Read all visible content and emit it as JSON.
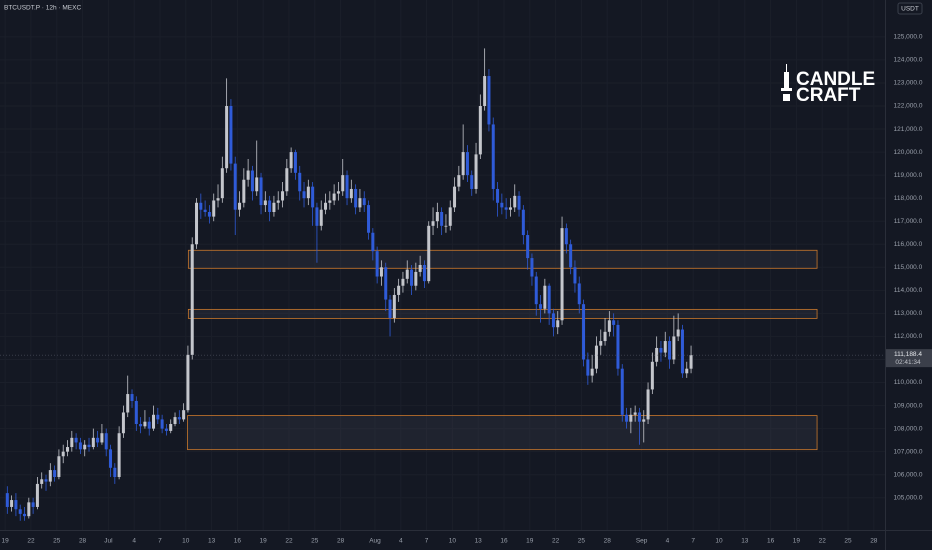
{
  "header": {
    "symbol_line": "BTCUSDT.P · 12h · MEXC",
    "currency": "USDT"
  },
  "logo": {
    "line1": "CANDLE",
    "line2": "CRAFT"
  },
  "chart_data": {
    "type": "candlestick",
    "up_color": "#c4c6cc",
    "down_color": "#2f5bd8",
    "zone_color": "#c9782c",
    "xlim": [
      -0.6,
      102.3
    ],
    "ylim": [
      103600,
      126600
    ],
    "xticks": [
      {
        "value": 0,
        "label": "19"
      },
      {
        "value": 3,
        "label": "22"
      },
      {
        "value": 6,
        "label": "25"
      },
      {
        "value": 9,
        "label": "28"
      },
      {
        "value": 12,
        "label": "Jul"
      },
      {
        "value": 15,
        "label": "4"
      },
      {
        "value": 18,
        "label": "7"
      },
      {
        "value": 21,
        "label": "10"
      },
      {
        "value": 24,
        "label": "13"
      },
      {
        "value": 27,
        "label": "16"
      },
      {
        "value": 30,
        "label": "19"
      },
      {
        "value": 33,
        "label": "22"
      },
      {
        "value": 36,
        "label": "25"
      },
      {
        "value": 39,
        "label": "28"
      },
      {
        "value": 43,
        "label": "Aug"
      },
      {
        "value": 46,
        "label": "4"
      },
      {
        "value": 49,
        "label": "7"
      },
      {
        "value": 52,
        "label": "10"
      },
      {
        "value": 55,
        "label": "13"
      },
      {
        "value": 58,
        "label": "16"
      },
      {
        "value": 61,
        "label": "19"
      },
      {
        "value": 64,
        "label": "22"
      },
      {
        "value": 67,
        "label": "25"
      },
      {
        "value": 70,
        "label": "28"
      },
      {
        "value": 74,
        "label": "Sep"
      },
      {
        "value": 77,
        "label": "4"
      },
      {
        "value": 80,
        "label": "7"
      },
      {
        "value": 83,
        "label": "10"
      },
      {
        "value": 86,
        "label": "13"
      },
      {
        "value": 89,
        "label": "16"
      },
      {
        "value": 92,
        "label": "19"
      },
      {
        "value": 95,
        "label": "22"
      },
      {
        "value": 98,
        "label": "25"
      },
      {
        "value": 101,
        "label": "28"
      }
    ],
    "yticks": [
      {
        "value": 105000,
        "label": "105,000.0"
      },
      {
        "value": 106000,
        "label": "106,000.0"
      },
      {
        "value": 107000,
        "label": "107,000.0"
      },
      {
        "value": 108000,
        "label": "108,000.0"
      },
      {
        "value": 109000,
        "label": "109,000.0"
      },
      {
        "value": 110000,
        "label": "110,000.0"
      },
      {
        "value": 111000,
        "label": "111,000.0"
      },
      {
        "value": 112000,
        "label": "112,000.0"
      },
      {
        "value": 113000,
        "label": "113,000.0"
      },
      {
        "value": 114000,
        "label": "114,000.0"
      },
      {
        "value": 115000,
        "label": "115,000.0"
      },
      {
        "value": 116000,
        "label": "116,000.0"
      },
      {
        "value": 117000,
        "label": "117,000.0"
      },
      {
        "value": 118000,
        "label": "118,000.0"
      },
      {
        "value": 119000,
        "label": "119,000.0"
      },
      {
        "value": 120000,
        "label": "120,000.0"
      },
      {
        "value": 121000,
        "label": "121,000.0"
      },
      {
        "value": 122000,
        "label": "122,000.0"
      },
      {
        "value": 123000,
        "label": "123,000.0"
      },
      {
        "value": 124000,
        "label": "124,000.0"
      },
      {
        "value": 125000,
        "label": "125,000.0"
      }
    ],
    "zones": [
      {
        "x": [
          21.3,
          94.4
        ],
        "y": [
          114957,
          115739
        ]
      },
      {
        "x": [
          21.3,
          94.4
        ],
        "y": [
          112783,
          113174
        ]
      },
      {
        "x": [
          21.2,
          94.4
        ],
        "y": [
          107087,
          108565
        ]
      }
    ],
    "last_price": {
      "value": 111188.4,
      "label": "111,188.4"
    },
    "countdown": "02:41:34",
    "x": [
      0,
      0.5,
      1,
      1.5,
      2,
      2.5,
      3,
      3.5,
      4,
      4.5,
      5,
      5.5,
      6,
      6.5,
      7,
      7.5,
      8,
      8.5,
      9,
      9.5,
      10,
      10.5,
      11,
      11.5,
      12,
      12.5,
      13,
      13.5,
      14,
      14.5,
      15,
      15.5,
      16,
      16.5,
      17,
      17.5,
      18,
      18.5,
      19,
      19.5,
      20,
      20.5,
      21,
      21.5,
      22,
      22.5,
      23,
      23.5,
      24,
      24.5,
      25,
      25.5,
      26,
      26.5,
      27,
      27.5,
      28,
      28.5,
      29,
      29.5,
      30,
      30.5,
      31,
      31.5,
      32,
      32.5,
      33,
      33.5,
      34,
      34.5,
      35,
      35.5,
      36,
      36.5,
      37,
      37.5,
      38,
      38.5,
      39,
      39.5,
      40,
      40.5,
      41,
      41.5,
      42,
      42.5,
      43,
      43.5,
      44,
      44.5,
      45,
      45.5,
      46,
      46.5,
      47,
      47.5,
      48,
      48.5,
      49,
      49.5,
      50,
      50.5,
      51,
      51.5,
      52,
      52.5,
      53,
      53.5,
      54,
      54.5,
      55,
      55.5,
      56,
      56.5,
      57,
      57.5,
      58,
      58.5,
      59,
      59.5,
      60,
      60.5,
      61,
      61.5,
      62,
      62.5,
      63,
      63.5,
      64,
      64.5,
      65,
      65.5,
      66,
      66.5,
      67,
      67.5,
      68,
      68.5,
      69,
      69.5,
      70,
      70.5,
      71,
      71.5,
      72,
      72.5,
      73,
      73.5,
      74,
      74.5,
      75,
      75.5,
      76,
      76.5,
      77,
      77.5,
      78,
      78.5,
      79,
      79.5
    ],
    "candles": [
      [
        105200,
        105500,
        104300,
        104600
      ],
      [
        104600,
        105100,
        104400,
        104900
      ],
      [
        104900,
        105200,
        104200,
        104500
      ],
      [
        104500,
        104700,
        104000,
        104300
      ],
      [
        104300,
        104600,
        104000,
        104200
      ],
      [
        104200,
        105000,
        104100,
        104800
      ],
      [
        104800,
        105000,
        104300,
        104600
      ],
      [
        104600,
        105900,
        104500,
        105600
      ],
      [
        105600,
        106100,
        105400,
        105800
      ],
      [
        105800,
        106000,
        105300,
        105700
      ],
      [
        105700,
        106500,
        105500,
        106200
      ],
      [
        106200,
        106400,
        105700,
        105900
      ],
      [
        105900,
        107100,
        105800,
        106800
      ],
      [
        106800,
        107300,
        106500,
        107000
      ],
      [
        107000,
        107500,
        106800,
        107200
      ],
      [
        107200,
        107900,
        107000,
        107600
      ],
      [
        107600,
        107800,
        107100,
        107400
      ],
      [
        107400,
        107600,
        106900,
        107100
      ],
      [
        107100,
        107500,
        106800,
        107300
      ],
      [
        107300,
        107600,
        107000,
        107200
      ],
      [
        107200,
        108000,
        107100,
        107600
      ],
      [
        107600,
        107900,
        107200,
        107400
      ],
      [
        107400,
        108200,
        107300,
        107800
      ],
      [
        107800,
        108000,
        106800,
        107100
      ],
      [
        107100,
        107300,
        105900,
        106300
      ],
      [
        106300,
        106500,
        105600,
        105900
      ],
      [
        105900,
        108100,
        105800,
        107800
      ],
      [
        107800,
        109000,
        107600,
        108700
      ],
      [
        108700,
        110300,
        108500,
        109500
      ],
      [
        109500,
        109700,
        108900,
        109200
      ],
      [
        109200,
        109400,
        107900,
        108200
      ],
      [
        108200,
        108500,
        107800,
        108100
      ],
      [
        108100,
        108800,
        108000,
        108300
      ],
      [
        108300,
        108500,
        107700,
        108000
      ],
      [
        108000,
        109000,
        107900,
        108600
      ],
      [
        108600,
        108900,
        108200,
        108400
      ],
      [
        108400,
        108600,
        107800,
        108000
      ],
      [
        108000,
        108200,
        107700,
        107900
      ],
      [
        107900,
        108400,
        107800,
        108200
      ],
      [
        108200,
        108700,
        108100,
        108500
      ],
      [
        108500,
        108800,
        108200,
        108400
      ],
      [
        108400,
        109100,
        108300,
        108800
      ],
      [
        108800,
        111600,
        108700,
        111200
      ],
      [
        111200,
        116300,
        111000,
        116000
      ],
      [
        116000,
        118000,
        115800,
        117800
      ],
      [
        117800,
        118200,
        117100,
        117500
      ],
      [
        117500,
        117900,
        117200,
        117400
      ],
      [
        117400,
        117700,
        116900,
        117200
      ],
      [
        117200,
        118200,
        117000,
        117900
      ],
      [
        117900,
        118600,
        117600,
        118000
      ],
      [
        118000,
        119800,
        117800,
        119300
      ],
      [
        119300,
        123200,
        119100,
        122000
      ],
      [
        122000,
        122300,
        119200,
        119500
      ],
      [
        119500,
        119800,
        116400,
        117500
      ],
      [
        117500,
        118300,
        117200,
        117800
      ],
      [
        117800,
        119300,
        117600,
        118800
      ],
      [
        118800,
        119700,
        118500,
        119200
      ],
      [
        119200,
        119400,
        117900,
        118300
      ],
      [
        118300,
        120500,
        118100,
        118900
      ],
      [
        118900,
        119100,
        117300,
        117700
      ],
      [
        117700,
        118300,
        117400,
        117900
      ],
      [
        117900,
        118100,
        117000,
        117400
      ],
      [
        117400,
        118100,
        117200,
        117800
      ],
      [
        117800,
        118300,
        117500,
        117900
      ],
      [
        117900,
        118700,
        117600,
        118300
      ],
      [
        118300,
        119700,
        118100,
        119300
      ],
      [
        119300,
        120200,
        119100,
        120000
      ],
      [
        120000,
        120100,
        118800,
        119100
      ],
      [
        119100,
        119400,
        117900,
        118300
      ],
      [
        118300,
        118700,
        117600,
        118000
      ],
      [
        118000,
        118800,
        117700,
        118500
      ],
      [
        118500,
        118700,
        116800,
        117600
      ],
      [
        117600,
        117800,
        115200,
        116800
      ],
      [
        116800,
        117900,
        116600,
        117500
      ],
      [
        117500,
        118200,
        117300,
        117800
      ],
      [
        117800,
        118300,
        117500,
        117900
      ],
      [
        117900,
        118600,
        117700,
        118200
      ],
      [
        118200,
        118700,
        117900,
        118300
      ],
      [
        118300,
        119700,
        118100,
        119000
      ],
      [
        119000,
        119200,
        117700,
        118000
      ],
      [
        118000,
        118800,
        117800,
        118400
      ],
      [
        118400,
        118600,
        117300,
        117600
      ],
      [
        117600,
        118400,
        117400,
        118000
      ],
      [
        118000,
        118300,
        117400,
        117700
      ],
      [
        117700,
        117900,
        116200,
        116500
      ],
      [
        116500,
        116700,
        115300,
        115700
      ],
      [
        115700,
        115900,
        114300,
        114600
      ],
      [
        114600,
        115300,
        114200,
        115000
      ],
      [
        115000,
        115200,
        113100,
        113600
      ],
      [
        113600,
        113800,
        112000,
        112800
      ],
      [
        112800,
        114100,
        112600,
        113800
      ],
      [
        113800,
        114500,
        113500,
        114200
      ],
      [
        114200,
        114800,
        113900,
        114500
      ],
      [
        114500,
        115300,
        114300,
        114900
      ],
      [
        114900,
        115100,
        113800,
        114200
      ],
      [
        114200,
        115200,
        114000,
        114800
      ],
      [
        114800,
        115500,
        114600,
        115100
      ],
      [
        115100,
        115300,
        114100,
        114400
      ],
      [
        114400,
        117000,
        114300,
        116800
      ],
      [
        116800,
        117600,
        116400,
        117000
      ],
      [
        117000,
        117800,
        116700,
        117400
      ],
      [
        117400,
        117600,
        116400,
        116800
      ],
      [
        116800,
        117300,
        116500,
        116800
      ],
      [
        116800,
        117900,
        116600,
        117600
      ],
      [
        117600,
        118900,
        117400,
        118500
      ],
      [
        118500,
        119400,
        118300,
        119000
      ],
      [
        119000,
        121200,
        118800,
        120000
      ],
      [
        120000,
        120300,
        118700,
        119000
      ],
      [
        119000,
        119200,
        118100,
        118400
      ],
      [
        118400,
        120400,
        118200,
        119900
      ],
      [
        119900,
        122500,
        119700,
        122000
      ],
      [
        122000,
        124500,
        121800,
        123300
      ],
      [
        123300,
        123600,
        120900,
        121200
      ],
      [
        121200,
        121500,
        117900,
        118400
      ],
      [
        118400,
        118700,
        117200,
        117800
      ],
      [
        117800,
        118200,
        117300,
        117600
      ],
      [
        117600,
        118000,
        117100,
        117500
      ],
      [
        117500,
        118000,
        117200,
        117600
      ],
      [
        117600,
        118600,
        117400,
        118100
      ],
      [
        118100,
        118300,
        117200,
        117500
      ],
      [
        117500,
        117700,
        116000,
        116400
      ],
      [
        116400,
        116600,
        114900,
        115400
      ],
      [
        115400,
        115600,
        114200,
        114600
      ],
      [
        114600,
        114800,
        112900,
        113400
      ],
      [
        113400,
        113800,
        112600,
        113200
      ],
      [
        113200,
        114500,
        113000,
        114200
      ],
      [
        114200,
        114300,
        112500,
        113000
      ],
      [
        113000,
        113200,
        112000,
        112400
      ],
      [
        112400,
        113100,
        112100,
        112700
      ],
      [
        112700,
        117200,
        112500,
        116700
      ],
      [
        116700,
        116900,
        115600,
        116000
      ],
      [
        116000,
        116200,
        114700,
        115000
      ],
      [
        115000,
        115300,
        113900,
        114300
      ],
      [
        114300,
        114600,
        113000,
        113400
      ],
      [
        113400,
        113600,
        110700,
        111000
      ],
      [
        111000,
        111300,
        109900,
        110300
      ],
      [
        110300,
        111200,
        110000,
        110600
      ],
      [
        110600,
        112000,
        110400,
        111600
      ],
      [
        111600,
        112300,
        111200,
        111800
      ],
      [
        111800,
        112800,
        111600,
        112200
      ],
      [
        112200,
        113100,
        112000,
        112700
      ],
      [
        112700,
        113000,
        112000,
        112500
      ],
      [
        112500,
        112700,
        110300,
        110600
      ],
      [
        110600,
        110800,
        108300,
        108600
      ],
      [
        108600,
        108900,
        108000,
        108300
      ],
      [
        108300,
        108900,
        107800,
        108600
      ],
      [
        108600,
        109000,
        108300,
        108700
      ],
      [
        108700,
        108900,
        107300,
        108300
      ],
      [
        108300,
        108800,
        107400,
        108400
      ],
      [
        108400,
        110000,
        108200,
        109700
      ],
      [
        109700,
        111300,
        109500,
        110900
      ],
      [
        110900,
        112000,
        110700,
        111500
      ],
      [
        111500,
        111800,
        110900,
        111300
      ],
      [
        111300,
        112200,
        111100,
        111800
      ],
      [
        111800,
        112000,
        110600,
        111000
      ],
      [
        111000,
        112900,
        110800,
        112000
      ],
      [
        112000,
        113000,
        111800,
        112300
      ],
      [
        112300,
        112500,
        110200,
        110400
      ],
      [
        110400,
        110900,
        110200,
        110600
      ],
      [
        110600,
        111600,
        110400,
        111188.4
      ]
    ]
  }
}
